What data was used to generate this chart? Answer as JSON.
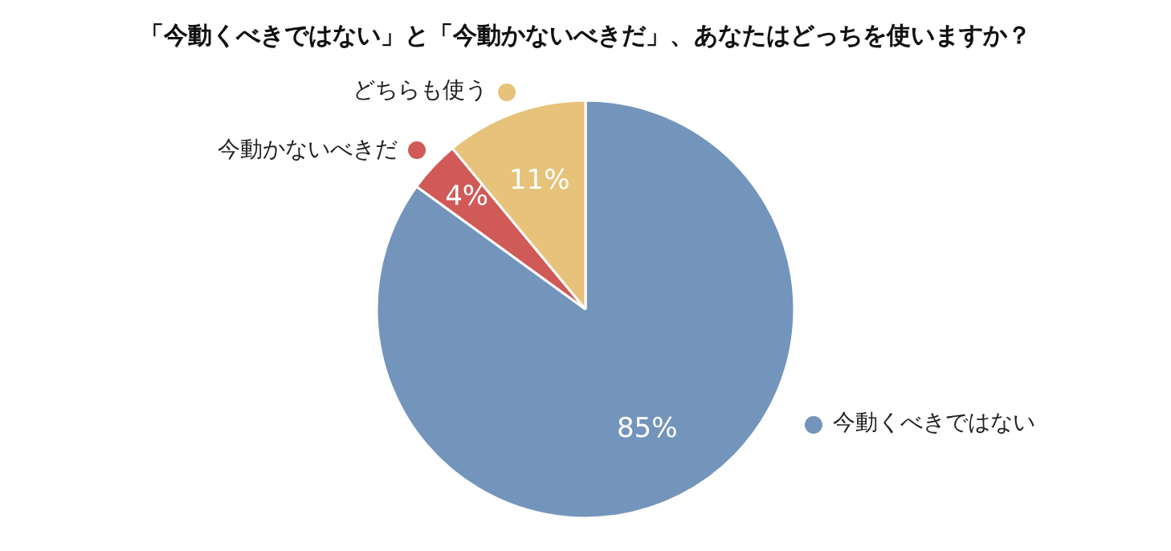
{
  "chart_data": {
    "type": "pie",
    "title": "「今動くべきではない」と「今動かないべきだ」、あなたはどっちを使いますか？",
    "categories": [
      "今動くべきではない",
      "今動かないべきだ",
      "どちらも使う"
    ],
    "values": [
      85,
      4,
      11
    ],
    "colors": [
      "#7495bb",
      "#d05a57",
      "#e6c27a"
    ],
    "value_labels": [
      "85%",
      "4%",
      "11%"
    ],
    "legend": "left"
  }
}
